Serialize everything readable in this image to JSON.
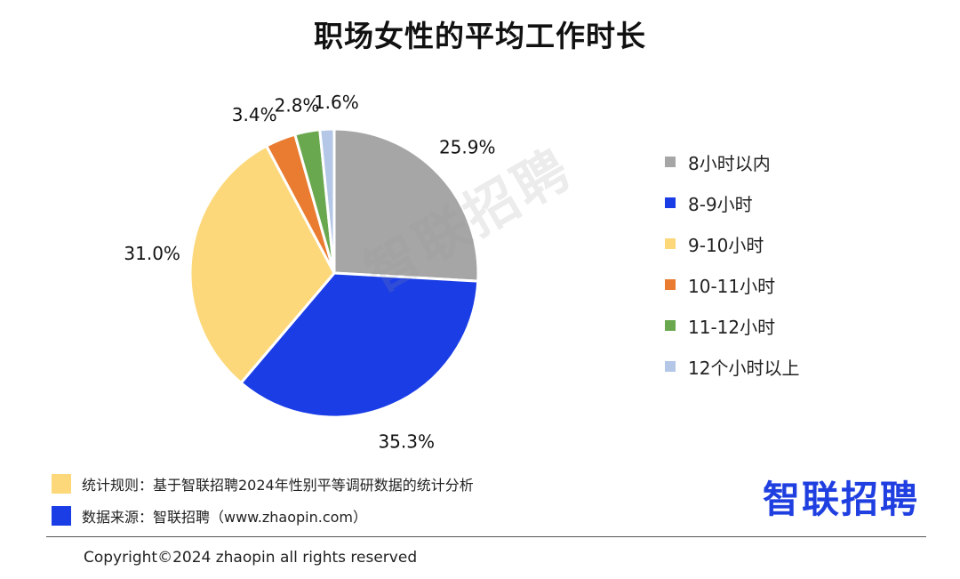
{
  "chart_data": {
    "type": "pie",
    "title": "职场女性的平均工作时长",
    "categories": [
      "8小时以内",
      "8-9小时",
      "9-10小时",
      "10-11小时",
      "11-12小时",
      "12个小时以上"
    ],
    "values": [
      25.9,
      35.3,
      31.0,
      3.4,
      2.8,
      1.6
    ],
    "data_labels": [
      "25.9%",
      "35.3%",
      "31.0%",
      "3.4%",
      "2.8%",
      "1.6%"
    ],
    "colors": [
      "#a6a6a6",
      "#1a3de6",
      "#fcd87a",
      "#e97c30",
      "#6aa84f",
      "#b4c7e7"
    ],
    "unit": "%",
    "legend_position": "right",
    "start_angle_deg": 0,
    "direction": "clockwise"
  },
  "watermark": "智联招聘",
  "notes": [
    {
      "text": "统计规则：基于智联招聘2024年性别平等调研数据的统计分析",
      "color": "#fcd87a"
    },
    {
      "text": "数据来源：智联招聘（www.zhaopin.com）",
      "color": "#1a3de6"
    }
  ],
  "brand": "智联招聘",
  "footer": "Copyright©2024 zhaopin all rights reserved"
}
